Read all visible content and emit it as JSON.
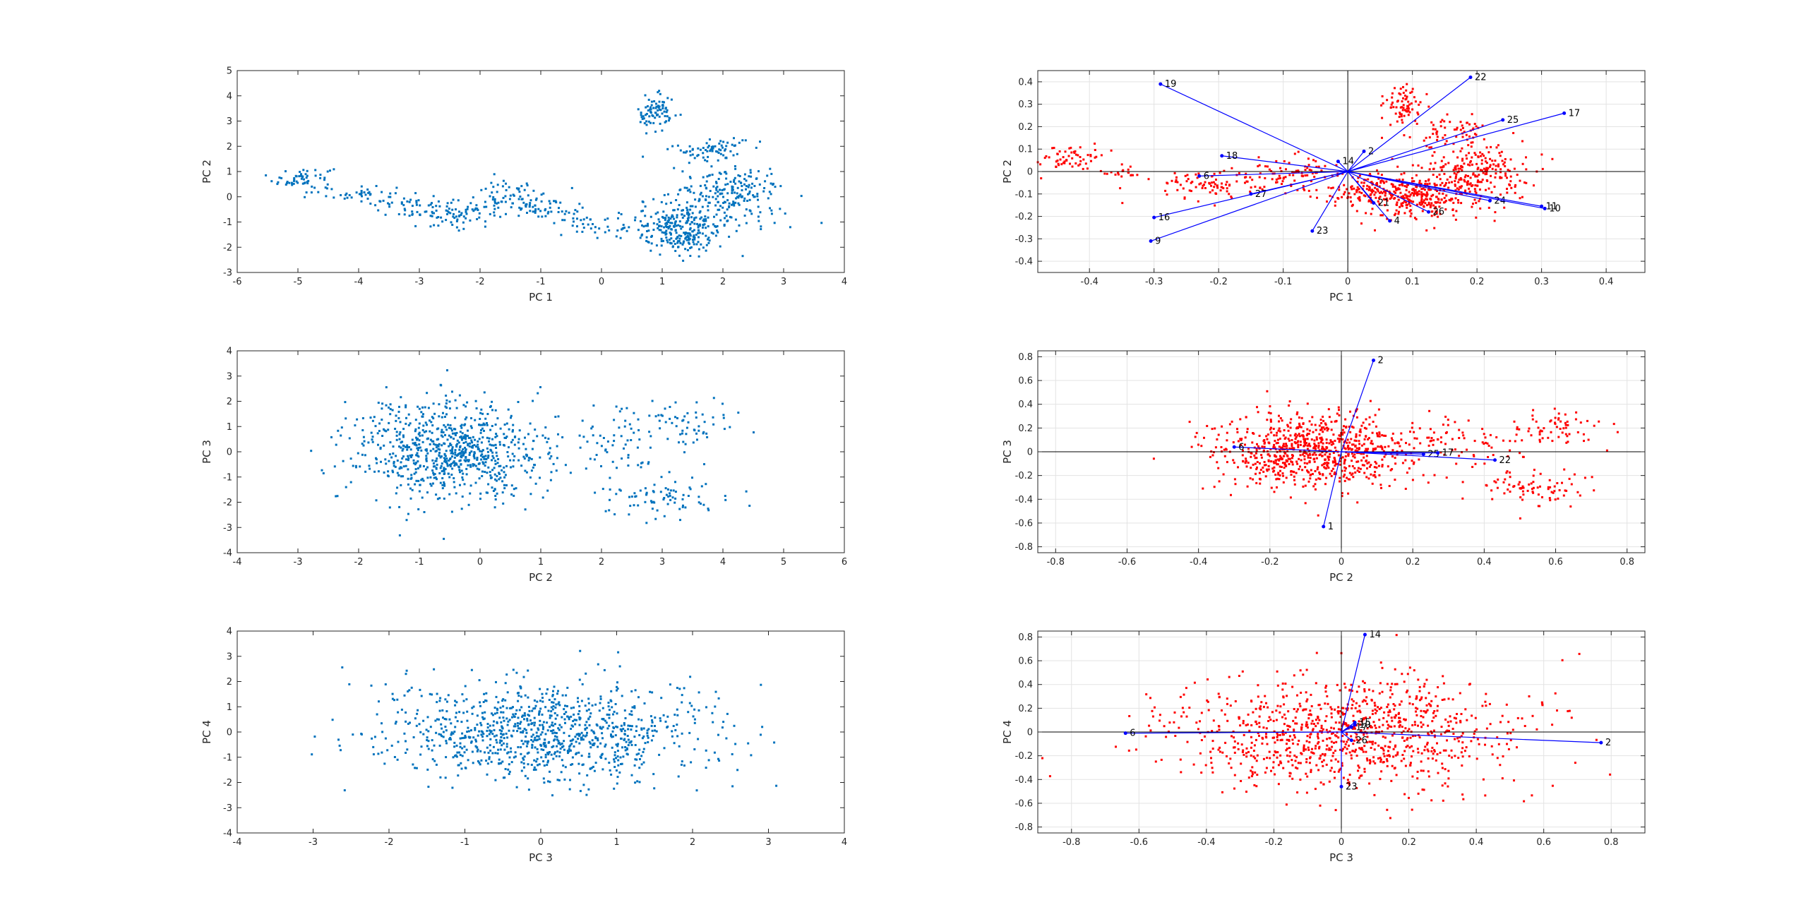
{
  "chart_data": [
    {
      "type": "scatter",
      "xlabel": "PC 1",
      "ylabel": "PC 2",
      "xlim": [
        -6,
        4
      ],
      "ylim": [
        -3,
        5
      ],
      "xticks": [
        -6,
        -5,
        -4,
        -3,
        -2,
        -1,
        0,
        1,
        2,
        3,
        4
      ],
      "yticks": [
        -3,
        -2,
        -1,
        0,
        1,
        2,
        3,
        4,
        5
      ],
      "grid": false,
      "point_color": "#0072bd",
      "n_points": 1000,
      "clusters": [
        {
          "cx": -4.9,
          "cy": 0.7,
          "sx": 0.25,
          "sy": 0.25,
          "w": 0.06
        },
        {
          "cx": -3.9,
          "cy": 0.1,
          "sx": 0.25,
          "sy": 0.2,
          "w": 0.04
        },
        {
          "cx": -3.2,
          "cy": -0.4,
          "sx": 0.3,
          "sy": 0.25,
          "w": 0.03
        },
        {
          "cx": -2.4,
          "cy": -0.7,
          "sx": 0.35,
          "sy": 0.25,
          "w": 0.08
        },
        {
          "cx": -1.6,
          "cy": 0.0,
          "sx": 0.3,
          "sy": 0.3,
          "w": 0.05
        },
        {
          "cx": -1.0,
          "cy": -0.3,
          "sx": 0.3,
          "sy": 0.3,
          "w": 0.06
        },
        {
          "cx": -0.4,
          "cy": -0.9,
          "sx": 0.25,
          "sy": 0.2,
          "w": 0.02
        },
        {
          "cx": 0.2,
          "cy": -1.2,
          "sx": 0.3,
          "sy": 0.25,
          "w": 0.03
        },
        {
          "cx": 0.9,
          "cy": 3.3,
          "sx": 0.15,
          "sy": 0.35,
          "w": 0.08
        },
        {
          "cx": 1.8,
          "cy": 1.9,
          "sx": 0.3,
          "sy": 0.25,
          "w": 0.07
        },
        {
          "cx": 1.3,
          "cy": -1.3,
          "sx": 0.35,
          "sy": 0.5,
          "w": 0.25
        },
        {
          "cx": 2.1,
          "cy": 0.0,
          "sx": 0.45,
          "sy": 0.6,
          "w": 0.23
        }
      ]
    },
    {
      "type": "biplot",
      "xlabel": "PC 1",
      "ylabel": "PC 2",
      "xlim": [
        -0.48,
        0.46
      ],
      "ylim": [
        -0.45,
        0.45
      ],
      "xticks": [
        -0.4,
        -0.3,
        -0.2,
        -0.1,
        0,
        0.1,
        0.2,
        0.3,
        0.4
      ],
      "yticks": [
        -0.4,
        -0.3,
        -0.2,
        -0.1,
        0,
        0.1,
        0.2,
        0.3,
        0.4
      ],
      "grid": true,
      "point_color": "#ff0000",
      "vector_color": "#0000ff",
      "n_points": 1000,
      "clusters": [
        {
          "cx": -0.43,
          "cy": 0.06,
          "sx": 0.025,
          "sy": 0.03,
          "w": 0.06
        },
        {
          "cx": -0.35,
          "cy": 0.0,
          "sx": 0.015,
          "sy": 0.015,
          "w": 0.02
        },
        {
          "cx": -0.22,
          "cy": -0.06,
          "sx": 0.04,
          "sy": 0.035,
          "w": 0.08
        },
        {
          "cx": -0.12,
          "cy": -0.02,
          "sx": 0.035,
          "sy": 0.04,
          "w": 0.05
        },
        {
          "cx": -0.07,
          "cy": 0.0,
          "sx": 0.03,
          "sy": 0.03,
          "w": 0.04
        },
        {
          "cx": 0.085,
          "cy": 0.3,
          "sx": 0.015,
          "sy": 0.045,
          "w": 0.07
        },
        {
          "cx": 0.16,
          "cy": 0.18,
          "sx": 0.035,
          "sy": 0.03,
          "w": 0.06
        },
        {
          "cx": 0.1,
          "cy": -0.12,
          "sx": 0.05,
          "sy": 0.045,
          "w": 0.25
        },
        {
          "cx": 0.2,
          "cy": 0.0,
          "sx": 0.04,
          "sy": 0.06,
          "w": 0.22
        },
        {
          "cx": 0.05,
          "cy": -0.08,
          "sx": 0.05,
          "sy": 0.04,
          "w": 0.15
        }
      ],
      "vectors": [
        {
          "label": "19",
          "x": -0.29,
          "y": 0.39
        },
        {
          "label": "22",
          "x": 0.19,
          "y": 0.42
        },
        {
          "label": "25",
          "x": 0.24,
          "y": 0.23
        },
        {
          "label": "17",
          "x": 0.335,
          "y": 0.26
        },
        {
          "label": "18",
          "x": -0.195,
          "y": 0.07
        },
        {
          "label": "14",
          "x": -0.015,
          "y": 0.045
        },
        {
          "label": "2",
          "x": 0.025,
          "y": 0.09
        },
        {
          "label": "6",
          "x": -0.23,
          "y": -0.02
        },
        {
          "label": "27",
          "x": -0.15,
          "y": -0.1
        },
        {
          "label": "16",
          "x": -0.3,
          "y": -0.205
        },
        {
          "label": "9",
          "x": -0.305,
          "y": -0.31
        },
        {
          "label": "23",
          "x": -0.055,
          "y": -0.265
        },
        {
          "label": "21",
          "x": 0.04,
          "y": -0.14
        },
        {
          "label": "4",
          "x": 0.065,
          "y": -0.22
        },
        {
          "label": "24",
          "x": 0.22,
          "y": -0.13
        },
        {
          "label": "11",
          "x": 0.3,
          "y": -0.155
        },
        {
          "label": "10",
          "x": 0.305,
          "y": -0.165
        },
        {
          "label": "26",
          "x": 0.125,
          "y": -0.18
        }
      ]
    },
    {
      "type": "scatter",
      "xlabel": "PC 2",
      "ylabel": "PC 3",
      "xlim": [
        -4,
        6
      ],
      "ylim": [
        -4,
        4
      ],
      "xticks": [
        -4,
        -3,
        -2,
        -1,
        0,
        1,
        2,
        3,
        4,
        5,
        6
      ],
      "yticks": [
        -4,
        -3,
        -2,
        -1,
        0,
        1,
        2,
        3,
        4
      ],
      "grid": false,
      "point_color": "#0072bd",
      "n_points": 1000,
      "clusters": [
        {
          "cx": -0.5,
          "cy": 0.0,
          "sx": 0.8,
          "sy": 1.0,
          "w": 0.8
        },
        {
          "cx": 2.2,
          "cy": 0.2,
          "sx": 0.4,
          "sy": 0.8,
          "w": 0.05
        },
        {
          "cx": 3.3,
          "cy": 1.2,
          "sx": 0.5,
          "sy": 0.5,
          "w": 0.07
        },
        {
          "cx": 3.0,
          "cy": -1.8,
          "sx": 0.5,
          "sy": 0.4,
          "w": 0.08
        }
      ]
    },
    {
      "type": "biplot",
      "xlabel": "PC 2",
      "ylabel": "PC 3",
      "xlim": [
        -0.85,
        0.85
      ],
      "ylim": [
        -0.85,
        0.85
      ],
      "xticks": [
        -0.8,
        -0.6,
        -0.4,
        -0.2,
        0,
        0.2,
        0.4,
        0.6,
        0.8
      ],
      "yticks": [
        -0.8,
        -0.6,
        -0.4,
        -0.2,
        0,
        0.2,
        0.4,
        0.6,
        0.8
      ],
      "grid": true,
      "point_color": "#ff0000",
      "vector_color": "#0000ff",
      "n_points": 1000,
      "clusters": [
        {
          "cx": -0.08,
          "cy": 0.0,
          "sx": 0.14,
          "sy": 0.16,
          "w": 0.8
        },
        {
          "cx": 0.35,
          "cy": 0.03,
          "sx": 0.07,
          "sy": 0.13,
          "w": 0.05
        },
        {
          "cx": 0.57,
          "cy": 0.2,
          "sx": 0.08,
          "sy": 0.09,
          "w": 0.07
        },
        {
          "cx": 0.52,
          "cy": -0.3,
          "sx": 0.08,
          "sy": 0.07,
          "w": 0.08
        }
      ],
      "vectors": [
        {
          "label": "2",
          "x": 0.09,
          "y": 0.77
        },
        {
          "label": "1",
          "x": -0.05,
          "y": -0.63
        },
        {
          "label": "6",
          "x": -0.3,
          "y": 0.04
        },
        {
          "label": "25",
          "x": 0.23,
          "y": -0.02
        },
        {
          "label": "17",
          "x": 0.27,
          "y": -0.01
        },
        {
          "label": "22",
          "x": 0.43,
          "y": -0.07
        }
      ]
    },
    {
      "type": "scatter",
      "xlabel": "PC 3",
      "ylabel": "PC 4",
      "xlim": [
        -4,
        4
      ],
      "ylim": [
        -4,
        4
      ],
      "xticks": [
        -4,
        -3,
        -2,
        -1,
        0,
        1,
        2,
        3,
        4
      ],
      "yticks": [
        -4,
        -3,
        -2,
        -1,
        0,
        1,
        2,
        3,
        4
      ],
      "grid": false,
      "point_color": "#0072bd",
      "n_points": 1000,
      "clusters": [
        {
          "cx": 0.0,
          "cy": 0.0,
          "sx": 1.05,
          "sy": 1.0,
          "w": 1.0
        }
      ]
    },
    {
      "type": "biplot",
      "xlabel": "PC 3",
      "ylabel": "PC 4",
      "xlim": [
        -0.9,
        0.9
      ],
      "ylim": [
        -0.85,
        0.85
      ],
      "xticks": [
        -0.8,
        -0.6,
        -0.4,
        -0.2,
        0,
        0.2,
        0.4,
        0.6,
        0.8
      ],
      "yticks": [
        -0.8,
        -0.6,
        -0.4,
        -0.2,
        0,
        0.2,
        0.4,
        0.6,
        0.8
      ],
      "grid": true,
      "point_color": "#ff0000",
      "vector_color": "#0000ff",
      "n_points": 1000,
      "clusters": [
        {
          "cx": 0.0,
          "cy": 0.0,
          "sx": 0.25,
          "sy": 0.24,
          "w": 1.0
        }
      ],
      "vectors": [
        {
          "label": "14",
          "x": 0.07,
          "y": 0.82
        },
        {
          "label": "2",
          "x": 0.77,
          "y": -0.09
        },
        {
          "label": "23",
          "x": 0.0,
          "y": -0.46
        },
        {
          "label": "6",
          "x": -0.64,
          "y": -0.01
        },
        {
          "label": "15",
          "x": 0.04,
          "y": 0.08
        },
        {
          "label": "10",
          "x": 0.04,
          "y": 0.06
        },
        {
          "label": "17",
          "x": 0.03,
          "y": 0.04
        },
        {
          "label": "26",
          "x": 0.03,
          "y": -0.07
        }
      ]
    }
  ]
}
